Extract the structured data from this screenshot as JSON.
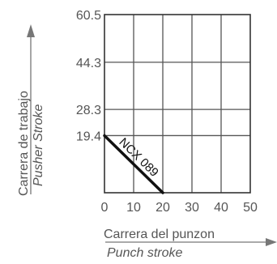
{
  "chart_data": {
    "type": "line",
    "x_ticks": [
      "0",
      "10",
      "20",
      "30",
      "40",
      "50"
    ],
    "x_tick_values": [
      0,
      10,
      20,
      30,
      40,
      50
    ],
    "y_ticks": [
      "19.4",
      "28.3",
      "44.3",
      "60.5"
    ],
    "y_tick_values": [
      19.4,
      28.3,
      44.3,
      60.5
    ],
    "xlim": [
      0,
      50
    ],
    "ylim": [
      0,
      60.5
    ],
    "xlabel": "Carrera del punzon",
    "xlabel_sub": "Punch stroke",
    "ylabel": "Carrera de trabajo",
    "ylabel_sub": "Pusher Stroke",
    "grid": true,
    "series": [
      {
        "name": "NCX 089",
        "x": [
          0,
          20
        ],
        "y": [
          19.4,
          0
        ],
        "color": "#111111"
      }
    ]
  }
}
